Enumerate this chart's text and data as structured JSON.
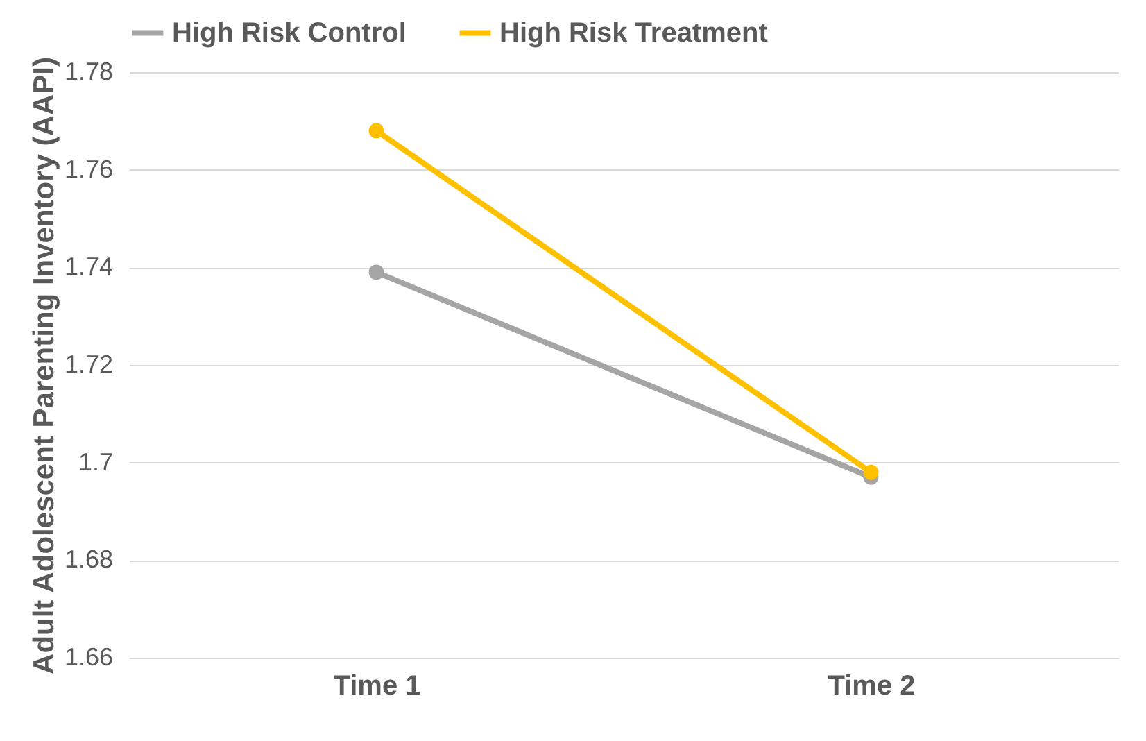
{
  "chart_data": {
    "type": "line",
    "ylabel": "Adult Adolescent Parenting Inventory (AAPI)",
    "categories": [
      "Time 1",
      "Time 2"
    ],
    "series": [
      {
        "name": "High Risk Control",
        "color": "#a5a5a5",
        "values": [
          1.739,
          1.697
        ]
      },
      {
        "name": "High Risk Treatment",
        "color": "#ffc000",
        "values": [
          1.768,
          1.698
        ]
      }
    ],
    "ylim": [
      1.66,
      1.78
    ],
    "yticks": [
      1.66,
      1.68,
      1.7,
      1.72,
      1.74,
      1.76,
      1.78
    ],
    "grid": "y",
    "legend": "top",
    "marker": "circle"
  }
}
